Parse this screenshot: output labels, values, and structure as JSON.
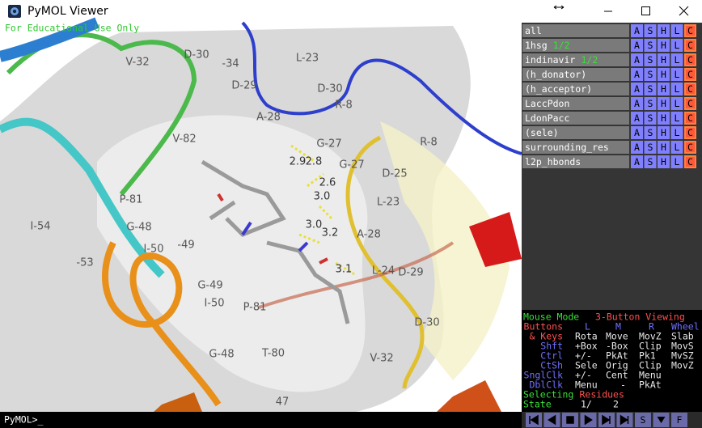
{
  "window": {
    "title": "PyMOL Viewer"
  },
  "viewport": {
    "watermark": "For Educational Use Only",
    "residue_labels": [
      "V-32",
      "D-30",
      "-34",
      "L-23",
      "D-29",
      "D-30",
      "R-8",
      "A-28",
      "R-8",
      "V-82",
      "G-27",
      "G-27",
      "D-25",
      "L-23",
      "P-81",
      "G-48",
      "I-54",
      "-49",
      "I-50",
      "-53",
      "G-49",
      "I-50",
      "P-81",
      "A-28",
      "L-24",
      "D-29",
      "D-30",
      "T-80",
      "G-48",
      "V-32",
      "47"
    ],
    "distance_labels": [
      "2.9",
      "2.8",
      "2.6",
      "3.0",
      "3.0",
      "3.2",
      "3.1"
    ]
  },
  "command_line": {
    "prompt": "PyMOL>_"
  },
  "objects": [
    {
      "name": "all"
    },
    {
      "name": "1hsg",
      "state": "1/2"
    },
    {
      "name": "indinavir",
      "state": "1/2"
    },
    {
      "name": "(h_donator)"
    },
    {
      "name": "(h_acceptor)"
    },
    {
      "name": "LaccPdon"
    },
    {
      "name": "LdonPacc"
    },
    {
      "name": "(sele)"
    },
    {
      "name": "surrounding_res"
    },
    {
      "name": "l2p_hbonds"
    }
  ],
  "object_buttons": [
    "A",
    "S",
    "H",
    "L",
    "C"
  ],
  "mouse_mode": {
    "title": "Mouse Mode",
    "mode": "3-Button Viewing",
    "rows": [
      {
        "label": "Buttons",
        "cells": [
          "L",
          "M",
          "R",
          "Wheel"
        ]
      },
      {
        "label": "& Keys",
        "cells": [
          "Rota",
          "Move",
          "MovZ",
          "Slab"
        ]
      },
      {
        "label": "Shft",
        "cells": [
          "+Box",
          "-Box",
          "Clip",
          "MovS"
        ]
      },
      {
        "label": "Ctrl",
        "cells": [
          "+/-",
          "PkAt",
          "Pk1",
          "MvSZ"
        ]
      },
      {
        "label": "CtSh",
        "cells": [
          "Sele",
          "Orig",
          "Clip",
          "MovZ"
        ]
      },
      {
        "label": "SnglClk",
        "cells": [
          "+/-",
          "Cent",
          "Menu",
          null
        ]
      },
      {
        "label": "DblClk",
        "cells": [
          "Menu",
          "-",
          "PkAt",
          null
        ]
      }
    ],
    "selecting": "Selecting",
    "selecting_what": "Residues",
    "state_label": "State",
    "state_current": "1/",
    "state_total": "2"
  },
  "playback_text_buttons": [
    "S",
    "F"
  ]
}
